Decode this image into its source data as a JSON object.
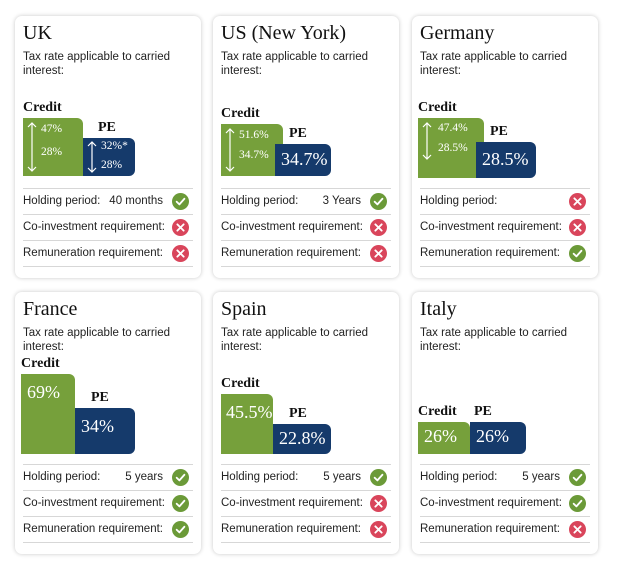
{
  "subtitle": "Tax rate applicable to carried interest:",
  "credit_label": "Credit",
  "pe_label": "PE",
  "row_labels": {
    "holding": "Holding period:",
    "coinvest": "Co-investment requirement:",
    "remuneration": "Remuneration requirement:"
  },
  "colors": {
    "credit": "#76a03b",
    "pe": "#153a6b",
    "check": "#6b9a38",
    "cross": "#d9455b"
  },
  "cards": [
    {
      "country": "UK",
      "credit": {
        "high": "47%",
        "low": "28%"
      },
      "pe": {
        "high": "32%*",
        "low": "28%"
      },
      "holding": {
        "value": "40 months",
        "status": "check"
      },
      "coinvest": {
        "status": "cross"
      },
      "remuneration": {
        "status": "cross"
      }
    },
    {
      "country": "US (New York)",
      "credit": {
        "high": "51.6%",
        "low": "34.7%"
      },
      "pe": {
        "value": "34.7%"
      },
      "holding": {
        "value": "3 Years",
        "status": "check"
      },
      "coinvest": {
        "status": "cross"
      },
      "remuneration": {
        "status": "cross"
      }
    },
    {
      "country": "Germany",
      "credit": {
        "high": "47.4%",
        "low": "28.5%"
      },
      "pe": {
        "value": "28.5%"
      },
      "holding": {
        "value": "",
        "status": "cross"
      },
      "coinvest": {
        "status": "cross"
      },
      "remuneration": {
        "status": "check"
      }
    },
    {
      "country": "France",
      "credit": {
        "value": "69%"
      },
      "pe": {
        "value": "34%"
      },
      "holding": {
        "value": "5 years",
        "status": "check"
      },
      "coinvest": {
        "status": "check"
      },
      "remuneration": {
        "status": "check"
      }
    },
    {
      "country": "Spain",
      "credit": {
        "value": "45.5%"
      },
      "pe": {
        "value": "22.8%"
      },
      "holding": {
        "value": "5 years",
        "status": "check"
      },
      "coinvest": {
        "status": "cross"
      },
      "remuneration": {
        "status": "cross"
      }
    },
    {
      "country": "Italy",
      "credit": {
        "value": "26%"
      },
      "pe": {
        "value": "26%"
      },
      "holding": {
        "value": "5 years",
        "status": "check"
      },
      "coinvest": {
        "status": "check"
      },
      "remuneration": {
        "status": "cross"
      }
    }
  ]
}
